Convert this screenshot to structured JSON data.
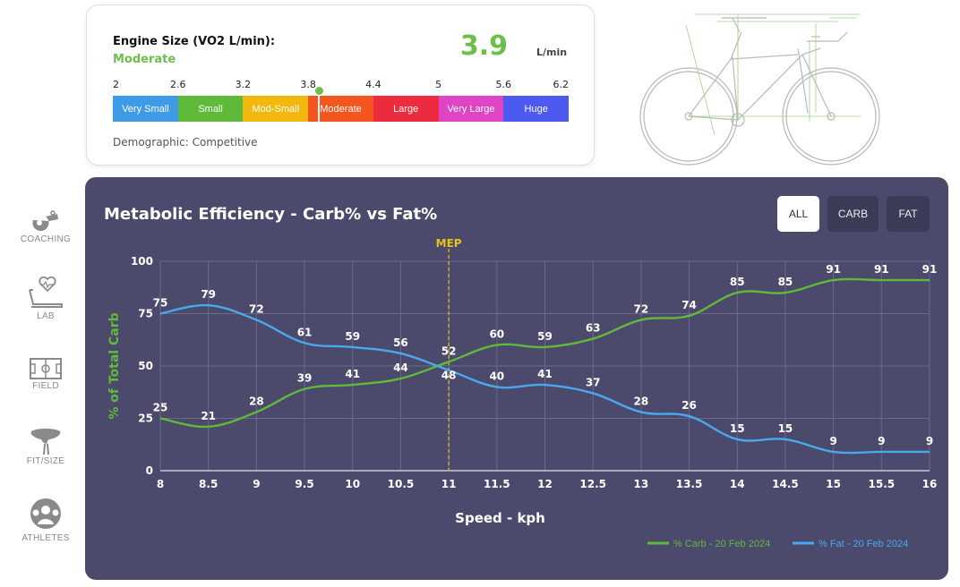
{
  "engine": {
    "title": "Engine Size (VO2 L/min):",
    "level": "Moderate",
    "value": "3.9",
    "unit": "L/min",
    "demographic": "Demographic: Competitive",
    "accent": "#6cc04a",
    "current": 3.9,
    "ticks": [
      "2",
      "2.6",
      "3.2",
      "3.8",
      "4.4",
      "5",
      "5.6",
      "6.2"
    ],
    "segments": [
      {
        "label": "Very Small",
        "color": "#3f9be6"
      },
      {
        "label": "Small",
        "color": "#5fba3a"
      },
      {
        "label": "Mod-Small",
        "color": "#f3b80d"
      },
      {
        "label": "Moderate",
        "color": "#f4561f"
      },
      {
        "label": "Large",
        "color": "#ec2b3f"
      },
      {
        "label": "Very Large",
        "color": "#df44c4"
      },
      {
        "label": "Huge",
        "color": "#4c5af0"
      }
    ]
  },
  "sidebar": {
    "items": [
      {
        "label": "COACHING",
        "icon": "whistle-icon"
      },
      {
        "label": "LAB",
        "icon": "treadmill-heart-icon"
      },
      {
        "label": "FIELD",
        "icon": "field-icon"
      },
      {
        "label": "FIT/SIZE",
        "icon": "saddle-icon"
      },
      {
        "label": "ATHLETES",
        "icon": "athletes-icon"
      }
    ]
  },
  "panel": {
    "title": "Metabolic Efficiency - Carb% vs Fat%",
    "buttons": {
      "all": "ALL",
      "carb": "CARB",
      "fat": "FAT"
    }
  },
  "chart_data": {
    "type": "line",
    "xlabel": "Speed - kph",
    "ylabel": "% of Total Carb",
    "x": [
      8,
      8.5,
      9,
      9.5,
      10,
      10.5,
      11,
      11.5,
      12,
      12.5,
      13,
      13.5,
      14,
      14.5,
      15,
      15.5,
      16
    ],
    "x_ticks": [
      "8",
      "8.5",
      "9",
      "9.5",
      "10",
      "10.5",
      "11",
      "11.5",
      "12",
      "12.5",
      "13",
      "13.5",
      "14",
      "14.5",
      "15",
      "15.5",
      "16"
    ],
    "y_ticks": [
      "0",
      "25",
      "50",
      "75",
      "100"
    ],
    "xlim": [
      8,
      16
    ],
    "ylim": [
      0,
      100
    ],
    "grid": true,
    "legend": "bottom-right",
    "mep": {
      "x": 11,
      "label": "MEP",
      "color": "#e8c21a"
    },
    "series": [
      {
        "name": "% Carb - 20 Feb 2024",
        "color": "#5fba3a",
        "values": [
          25,
          21,
          28,
          39,
          41,
          44,
          52,
          60,
          59,
          63,
          72,
          74,
          85,
          85,
          91,
          91,
          91
        ]
      },
      {
        "name": "% Fat - 20 Feb 2024",
        "color": "#4aa8ee",
        "values": [
          75,
          79,
          72,
          61,
          59,
          56,
          48,
          40,
          41,
          37,
          28,
          26,
          15,
          15,
          9,
          9,
          9
        ]
      }
    ]
  }
}
